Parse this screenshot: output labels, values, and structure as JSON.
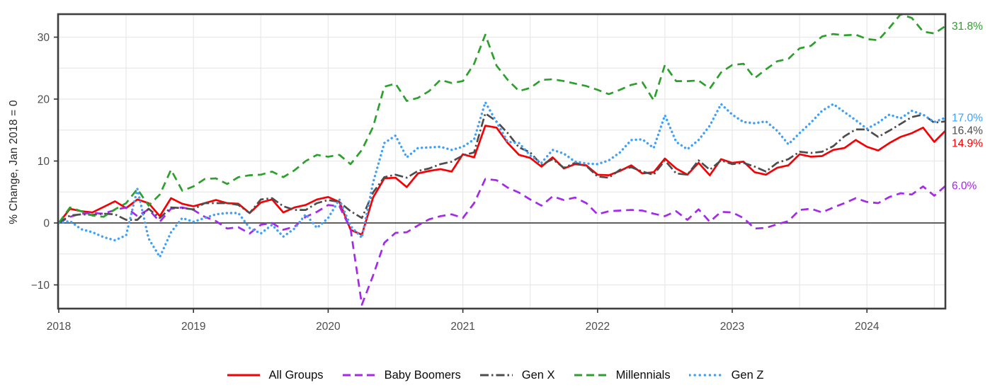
{
  "chart": {
    "background": "#ffffff",
    "frame_color": "#3f3f3f",
    "gridline_color": "#e8e8e8",
    "zero_line_color": "#4a4a4a",
    "tick_label_color": "#4d4d4d",
    "y_axis": {
      "title": "% Change, Jan 2018 = 0",
      "labeled_ticks": [
        -10,
        0,
        10,
        20,
        30
      ],
      "gridline_step": 5,
      "range": [
        -13.8,
        33.7
      ]
    },
    "x_axis": {
      "tick_labels": [
        "2018",
        "2019",
        "2020",
        "2021",
        "2022",
        "2023",
        "2024"
      ],
      "gridlines_every_months": 6
    }
  },
  "chart_data": {
    "type": "line",
    "title": "",
    "xlabel": "",
    "ylabel": "% Change, Jan 2018 = 0",
    "x_unit": "month",
    "x_start": "2018-01",
    "x_end": "2024-08",
    "points_per_series": 80,
    "ylim": [
      -13.8,
      33.7
    ],
    "grid": true,
    "legend_position": "bottom",
    "series": [
      {
        "name": "All Groups",
        "color": "#f70004",
        "line_style": "solid",
        "end_label": "14.9%",
        "values": [
          0,
          2.3,
          1.9,
          1.7,
          2.6,
          3.5,
          2.4,
          3.8,
          3.2,
          1.1,
          4.0,
          3.1,
          2.7,
          3.2,
          3.7,
          3.2,
          3.1,
          1.6,
          3.3,
          3.8,
          1.7,
          2.5,
          2.9,
          3.8,
          4.2,
          3.4,
          -1.1,
          -1.9,
          4.1,
          7.2,
          7.3,
          5.8,
          8.0,
          8.4,
          8.7,
          8.3,
          11.1,
          10.6,
          15.7,
          15.4,
          12.9,
          11.0,
          10.5,
          9.1,
          10.6,
          8.8,
          9.5,
          9.3,
          7.8,
          7.7,
          8.4,
          9.3,
          8.0,
          8.2,
          10.4,
          8.8,
          7.8,
          9.7,
          7.7,
          10.3,
          9.7,
          9.9,
          8.2,
          7.8,
          8.9,
          9.3,
          11.1,
          10.7,
          10.8,
          11.8,
          12.1,
          13.4,
          12.3,
          11.7,
          12.9,
          13.9,
          14.5,
          15.4,
          13.1,
          14.9
        ]
      },
      {
        "name": "Baby Boomers",
        "color": "#a429ea",
        "line_style": "dashed",
        "end_label": "6.0%",
        "values": [
          0,
          1.0,
          1.5,
          1.6,
          1.5,
          2.1,
          2.5,
          1.1,
          2.2,
          0.2,
          2.3,
          2.5,
          2.1,
          1.0,
          0.3,
          -0.9,
          -0.7,
          -1.7,
          -0.3,
          0.0,
          -1.1,
          -0.6,
          1.0,
          1.8,
          2.9,
          2.7,
          -1.0,
          -13.2,
          -8.5,
          -3.2,
          -1.6,
          -1.5,
          -0.4,
          0.6,
          1.1,
          1.4,
          0.8,
          3.2,
          7.1,
          6.9,
          5.7,
          4.9,
          3.8,
          2.8,
          4.3,
          3.7,
          4.1,
          3.2,
          1.4,
          1.9,
          2.0,
          2.1,
          2.0,
          1.5,
          1.1,
          1.9,
          0.5,
          2.2,
          0.2,
          1.8,
          1.7,
          0.8,
          -0.9,
          -0.8,
          -0.2,
          0.3,
          2.1,
          2.3,
          1.7,
          2.5,
          3.2,
          4.0,
          3.4,
          3.2,
          4.2,
          4.8,
          4.6,
          5.9,
          4.4,
          6.0
        ]
      },
      {
        "name": "Gen X",
        "color": "#4d4d4d",
        "line_style": "dashdot",
        "end_label": "16.4%",
        "values": [
          0,
          1.2,
          1.4,
          1.3,
          1.5,
          1.4,
          0.5,
          0.5,
          2.3,
          0.8,
          2.5,
          2.4,
          2.2,
          3.2,
          3.2,
          3.2,
          2.9,
          1.6,
          3.8,
          4.0,
          2.7,
          2.1,
          2.1,
          3.2,
          3.7,
          3.4,
          1.9,
          0.8,
          4.9,
          7.4,
          7.8,
          7.3,
          8.4,
          8.8,
          9.5,
          9.9,
          10.9,
          11.4,
          17.7,
          16.4,
          14.5,
          12.2,
          11.4,
          9.4,
          10.3,
          8.9,
          9.7,
          9.2,
          7.5,
          7.3,
          8.6,
          9.0,
          8.3,
          7.8,
          10.1,
          8.0,
          7.8,
          10.1,
          8.6,
          10.1,
          9.5,
          9.7,
          9.1,
          8.3,
          9.7,
          10.3,
          11.5,
          11.3,
          11.5,
          12.4,
          14.0,
          15.1,
          15.1,
          13.9,
          14.9,
          16.0,
          17.1,
          17.5,
          16.2,
          16.4
        ]
      },
      {
        "name": "Millennials",
        "color": "#2ca02c",
        "line_style": "dashed",
        "end_label": "31.8%",
        "values": [
          0,
          2.5,
          1.9,
          1.2,
          1.0,
          2.2,
          3.2,
          5.5,
          2.8,
          4.6,
          8.6,
          5.2,
          5.9,
          7.1,
          7.2,
          6.3,
          7.4,
          7.7,
          7.8,
          8.3,
          7.4,
          8.5,
          10.0,
          11.0,
          10.7,
          11.0,
          9.5,
          11.8,
          15.5,
          22.0,
          22.5,
          19.7,
          20.2,
          21.3,
          23.1,
          22.6,
          22.9,
          25.7,
          30.4,
          25.4,
          23.1,
          21.3,
          21.8,
          23.1,
          23.2,
          22.9,
          22.5,
          22.1,
          21.5,
          20.8,
          21.5,
          22.3,
          22.7,
          19.8,
          25.5,
          22.9,
          22.9,
          23.0,
          21.7,
          24.3,
          25.5,
          25.7,
          23.4,
          24.8,
          26.1,
          26.5,
          28.2,
          28.6,
          30.1,
          30.5,
          30.3,
          30.4,
          29.7,
          29.5,
          31.5,
          33.7,
          33.1,
          30.9,
          30.6,
          31.8
        ]
      },
      {
        "name": "Gen Z",
        "color": "#40a0f8",
        "line_style": "dotted",
        "end_label": "17.0%",
        "values": [
          0,
          0.3,
          -1.0,
          -1.5,
          -2.3,
          -2.8,
          -2.0,
          5.5,
          -2.5,
          -5.5,
          -1.5,
          0.8,
          0.2,
          0.8,
          1.4,
          1.6,
          1.6,
          -0.8,
          -1.7,
          -0.3,
          -2.2,
          -0.9,
          1.4,
          -0.8,
          0.8,
          3.8,
          -0.5,
          -2.4,
          6.5,
          12.9,
          14.1,
          10.6,
          12.1,
          12.2,
          12.3,
          11.8,
          12.3,
          13.5,
          19.5,
          16.3,
          13.1,
          12.9,
          10.9,
          9.7,
          11.8,
          11.2,
          9.9,
          9.6,
          9.5,
          10.1,
          11.4,
          13.4,
          13.5,
          12.1,
          17.4,
          13.1,
          11.9,
          13.4,
          15.7,
          19.2,
          17.5,
          16.3,
          16.1,
          16.4,
          14.9,
          12.7,
          14.5,
          16.2,
          18.1,
          19.2,
          17.9,
          16.6,
          15.2,
          16.2,
          17.5,
          16.9,
          18.1,
          17.5,
          16.3,
          17.0
        ]
      }
    ]
  }
}
